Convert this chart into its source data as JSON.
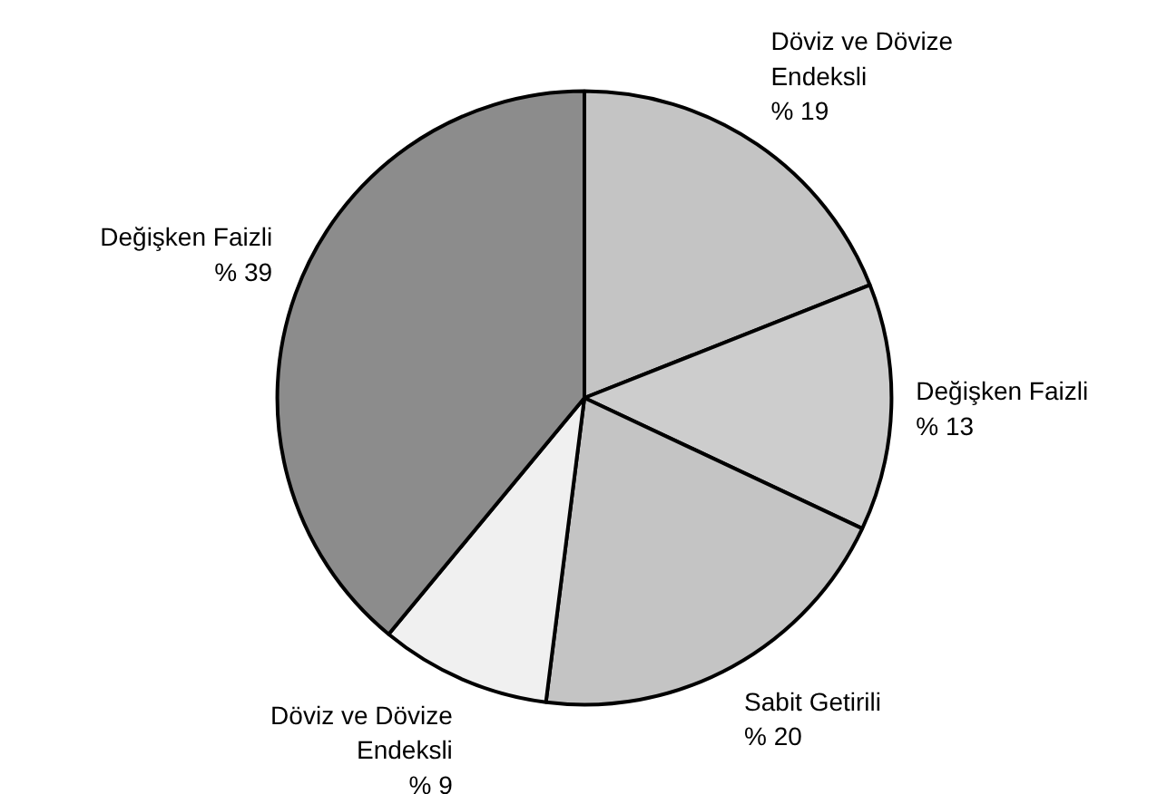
{
  "chart_data": {
    "type": "pie",
    "categories": [
      "Döviz ve Dövize Endeksli",
      "Değişken Faizli",
      "Sabit Getirili",
      "Döviz ve Dövize Endeksli",
      "Değişken Faizli"
    ],
    "values": [
      19,
      13,
      20,
      9,
      39
    ],
    "value_labels": [
      "% 19",
      "% 13",
      "% 20",
      "% 9",
      "% 39"
    ],
    "colors": [
      "#c4c4c4",
      "#cdcdcd",
      "#c4c4c4",
      "#f0f0f0",
      "#8c8c8c"
    ]
  }
}
